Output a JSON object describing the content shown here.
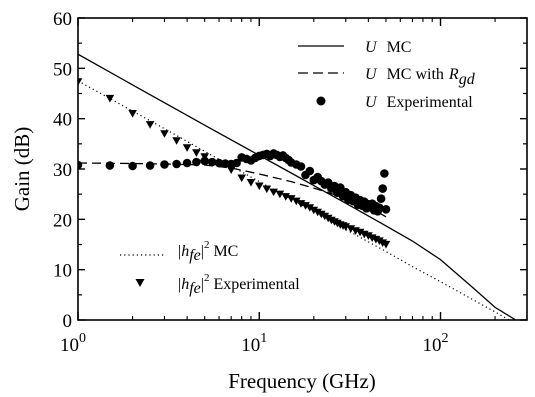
{
  "chart_data": {
    "type": "line",
    "title": "",
    "xlabel": "Frequency (GHz)",
    "ylabel": "Gain (dB)",
    "xscale": "log",
    "xlim": [
      1,
      300
    ],
    "ylim": [
      0,
      60
    ],
    "xticks": [
      1,
      10,
      100
    ],
    "xtick_labels": [
      {
        "base": "10",
        "exp": "0"
      },
      {
        "base": "10",
        "exp": "1"
      },
      {
        "base": "10",
        "exp": "2"
      }
    ],
    "yticks": [
      0,
      10,
      20,
      30,
      40,
      50,
      60
    ],
    "ytick_labels": [
      "0",
      "10",
      "20",
      "30",
      "40",
      "50",
      "60"
    ],
    "grid": false,
    "legend_position": "top-right and bottom-left",
    "series": [
      {
        "name": "U MC",
        "legend_parts": [
          "U",
          "MC"
        ],
        "style": "solid",
        "x": [
          1,
          2,
          5,
          10,
          15,
          20,
          30,
          50,
          70,
          100,
          150,
          200,
          260
        ],
        "y": [
          52.8,
          46.7,
          38.7,
          32.7,
          29.2,
          26.7,
          23.2,
          18.7,
          15.7,
          12.0,
          6.5,
          2.5,
          0
        ]
      },
      {
        "name": "U MC with R_gd",
        "legend_parts": [
          "U",
          "MC with",
          "R",
          "gd"
        ],
        "style": "dashed",
        "x": [
          1,
          2,
          3,
          5,
          7,
          10,
          15,
          20,
          30,
          40,
          50
        ],
        "y": [
          31.2,
          31.1,
          31.0,
          30.8,
          30.2,
          29.0,
          27.5,
          26.2,
          24.2,
          22.5,
          20.5
        ]
      },
      {
        "name": "U Experimental",
        "legend_parts": [
          "U",
          "Experimental"
        ],
        "style": "circle",
        "x": [
          1,
          1.5,
          2,
          2.5,
          3,
          3.5,
          4,
          4.5,
          5,
          5.5,
          6,
          6.5,
          7,
          7.5,
          8,
          8.5,
          9,
          9.5,
          10,
          10.5,
          11,
          11.5,
          12,
          12.5,
          13,
          13.5,
          14,
          14.5,
          15,
          16,
          17,
          18,
          19,
          20,
          21,
          22,
          23,
          24,
          25,
          26,
          27,
          28,
          29,
          30,
          31,
          32,
          33,
          34,
          35,
          36,
          37,
          38,
          39,
          40,
          41,
          42,
          43,
          44,
          45,
          46,
          47,
          48,
          49,
          50
        ],
        "y": [
          30.8,
          30.7,
          30.6,
          30.7,
          30.9,
          31.0,
          31.2,
          31.4,
          31.6,
          31.4,
          31.2,
          31.1,
          31.0,
          31.2,
          32.3,
          32.0,
          31.7,
          32.2,
          32.6,
          32.8,
          33.0,
          32.6,
          33.1,
          32.8,
          32.4,
          32.7,
          32.2,
          31.8,
          31.3,
          30.9,
          30.5,
          28.8,
          29.6,
          27.8,
          28.4,
          27.6,
          26.9,
          27.3,
          26.1,
          26.6,
          25.3,
          26.3,
          24.6,
          25.4,
          23.9,
          24.8,
          23.6,
          24.3,
          22.9,
          23.8,
          22.7,
          23.5,
          22.2,
          23.0,
          22.4,
          23.1,
          21.8,
          22.6,
          21.6,
          22.3,
          24.1,
          26.1,
          29.1,
          22.0
        ]
      },
      {
        "name": "|h_fe|^2 MC",
        "legend_parts": [
          "|",
          "h",
          "fe",
          "|",
          "2",
          "MC"
        ],
        "style": "dotted",
        "x": [
          1,
          1.5,
          2,
          3,
          5,
          10,
          20,
          30,
          50,
          70,
          100,
          150,
          200,
          250
        ],
        "y": [
          47.5,
          44.0,
          41.5,
          38.0,
          33.5,
          27.5,
          21.5,
          18.0,
          13.6,
          10.6,
          7.6,
          4.1,
          1.6,
          -0.4
        ]
      },
      {
        "name": "|h_fe|^2 Experimental",
        "legend_parts": [
          "|",
          "h",
          "fe",
          "|",
          "2",
          "Experimental"
        ],
        "style": "triangle",
        "x": [
          1,
          1.5,
          2,
          2.5,
          3,
          3.5,
          4,
          4.5,
          5,
          6,
          7,
          8,
          9,
          10,
          11,
          12,
          13,
          14,
          15,
          16,
          17,
          18,
          19,
          20,
          21,
          22,
          23,
          24,
          25,
          26,
          27,
          28,
          29,
          30,
          32,
          34,
          36,
          38,
          40,
          42,
          44,
          46,
          48,
          50
        ],
        "y": [
          47.3,
          44.0,
          41.0,
          38.8,
          37.0,
          35.6,
          34.2,
          33.2,
          32.4,
          31.0,
          29.8,
          28.2,
          27.3,
          26.6,
          26.0,
          25.4,
          25.0,
          24.5,
          24.1,
          23.6,
          23.1,
          22.7,
          22.3,
          21.8,
          21.4,
          21.0,
          20.6,
          20.2,
          19.8,
          19.5,
          19.2,
          18.9,
          18.7,
          18.5,
          18.1,
          17.7,
          17.4,
          17.0,
          16.7,
          16.3,
          16.0,
          15.7,
          15.3,
          15.0
        ]
      }
    ]
  }
}
